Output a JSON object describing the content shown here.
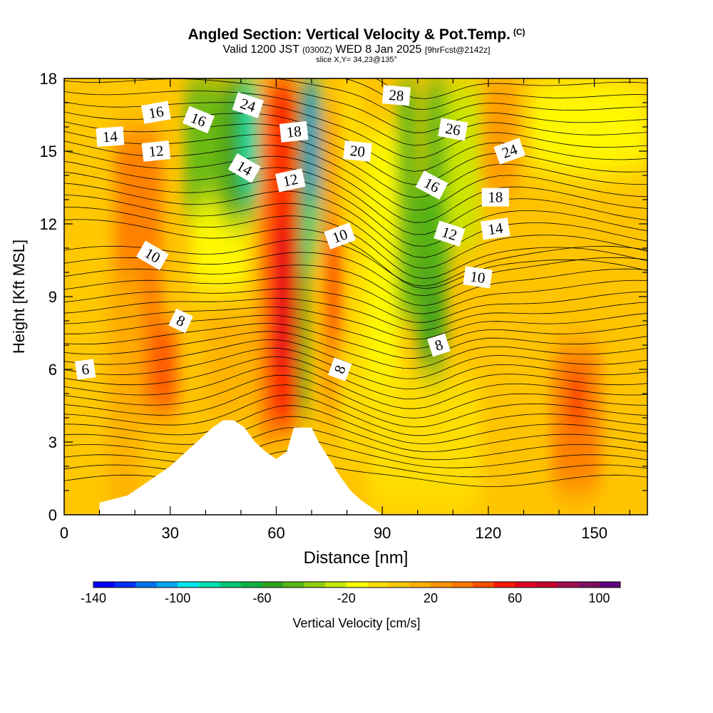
{
  "header": {
    "title": "Angled Section: Vertical Velocity & Pot.Temp.",
    "copyright": "(C)",
    "valid_prefix": "Valid 1200 JST",
    "valid_utc": "(0300Z)",
    "valid_date": "WED 8 Jan 2025",
    "forecast": "[9hrFcst@2142z]",
    "slice": "slice X,Y= 34,23@135°"
  },
  "chart_data": {
    "type": "heatmap",
    "xlabel": "Distance [nm]",
    "ylabel": "Height [Kft MSL]",
    "xlim": [
      0,
      165
    ],
    "ylim": [
      0,
      18
    ],
    "xticks": [
      0,
      30,
      60,
      90,
      120,
      150
    ],
    "yticks": [
      0,
      3,
      6,
      9,
      12,
      15,
      18
    ],
    "colorbar": {
      "label": "Vertical Velocity [cm/s]",
      "min": -140,
      "max": 110,
      "ticks": [
        -140,
        -100,
        -60,
        -20,
        20,
        60,
        100
      ],
      "colors": [
        "#0000ff",
        "#0030ff",
        "#0070f0",
        "#00a8f0",
        "#00e6f0",
        "#00e0b4",
        "#00c878",
        "#10b040",
        "#30a020",
        "#58b818",
        "#90d010",
        "#c8e800",
        "#ffff00",
        "#ffe000",
        "#ffc800",
        "#ffb000",
        "#ff9600",
        "#ff7800",
        "#ff5000",
        "#ff1800",
        "#e00020",
        "#c80030",
        "#a01050",
        "#801060",
        "#600080"
      ]
    },
    "terrain_profile": {
      "x": [
        0,
        10,
        10,
        18,
        21,
        24,
        27,
        30,
        33,
        36,
        39,
        42,
        45,
        48,
        51,
        54,
        57,
        60,
        63,
        65,
        70,
        72,
        75,
        78,
        81,
        84,
        87,
        90,
        165
      ],
      "y": [
        0,
        0,
        0.5,
        0.8,
        1.1,
        1.4,
        1.7,
        2.0,
        2.4,
        2.8,
        3.2,
        3.6,
        3.9,
        3.9,
        3.6,
        3.0,
        2.6,
        2.3,
        2.6,
        3.6,
        3.6,
        3.0,
        2.3,
        1.6,
        1.0,
        0.6,
        0.3,
        0,
        0
      ]
    },
    "theta_contours": [
      {
        "label": "6",
        "label_at": [
          6,
          6.0
        ]
      },
      {
        "label": "8",
        "label_at": [
          33,
          8.0
        ]
      },
      {
        "label": "8",
        "label_at": [
          78,
          6.0
        ]
      },
      {
        "label": "8",
        "label_at": [
          106,
          7.0
        ]
      },
      {
        "label": "10",
        "label_at": [
          25,
          10.7
        ]
      },
      {
        "label": "10",
        "label_at": [
          78,
          11.5
        ]
      },
      {
        "label": "10",
        "label_at": [
          117,
          9.8
        ]
      },
      {
        "label": "12",
        "label_at": [
          26,
          15.0
        ]
      },
      {
        "label": "12",
        "label_at": [
          64,
          13.8
        ]
      },
      {
        "label": "12",
        "label_at": [
          109,
          11.6
        ]
      },
      {
        "label": "14",
        "label_at": [
          13,
          15.6
        ]
      },
      {
        "label": "14",
        "label_at": [
          51,
          14.3
        ]
      },
      {
        "label": "14",
        "label_at": [
          122,
          11.8
        ]
      },
      {
        "label": "16",
        "label_at": [
          26,
          16.6
        ]
      },
      {
        "label": "16",
        "label_at": [
          38,
          16.3
        ]
      },
      {
        "label": "16",
        "label_at": [
          104,
          13.6
        ]
      },
      {
        "label": "18",
        "label_at": [
          65,
          15.8
        ]
      },
      {
        "label": "18",
        "label_at": [
          122,
          13.1
        ]
      },
      {
        "label": "20",
        "label_at": [
          83,
          15.0
        ]
      },
      {
        "label": "24",
        "label_at": [
          52,
          16.9
        ]
      },
      {
        "label": "24",
        "label_at": [
          126,
          15.0
        ]
      },
      {
        "label": "26",
        "label_at": [
          110,
          15.9
        ]
      },
      {
        "label": "28",
        "label_at": [
          94,
          17.3
        ]
      }
    ]
  }
}
